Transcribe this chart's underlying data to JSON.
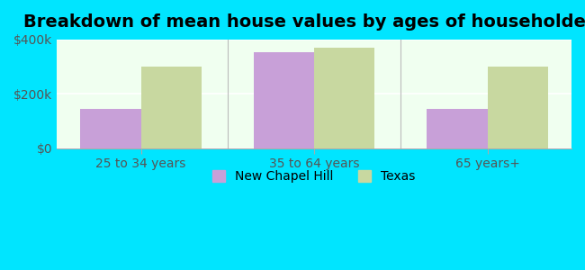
{
  "title": "Breakdown of mean house values by ages of householders",
  "categories": [
    "25 to 34 years",
    "35 to 64 years",
    "65 years+"
  ],
  "new_chapel_hill": [
    145000,
    355000,
    145000
  ],
  "texas": [
    300000,
    370000,
    300000
  ],
  "ylim": [
    0,
    400000
  ],
  "yticks": [
    0,
    200000,
    400000
  ],
  "ytick_labels": [
    "$0",
    "$200k",
    "$400k"
  ],
  "bar_width": 0.35,
  "color_chapel_hill": "#c8a0d8",
  "color_texas": "#c8d8a0",
  "background_color": "#00e5ff",
  "plot_bg_top": "#f0fff0",
  "plot_bg_bottom": "#dff5df",
  "legend_labels": [
    "New Chapel Hill",
    "Texas"
  ],
  "title_fontsize": 14,
  "tick_fontsize": 10,
  "legend_fontsize": 10
}
